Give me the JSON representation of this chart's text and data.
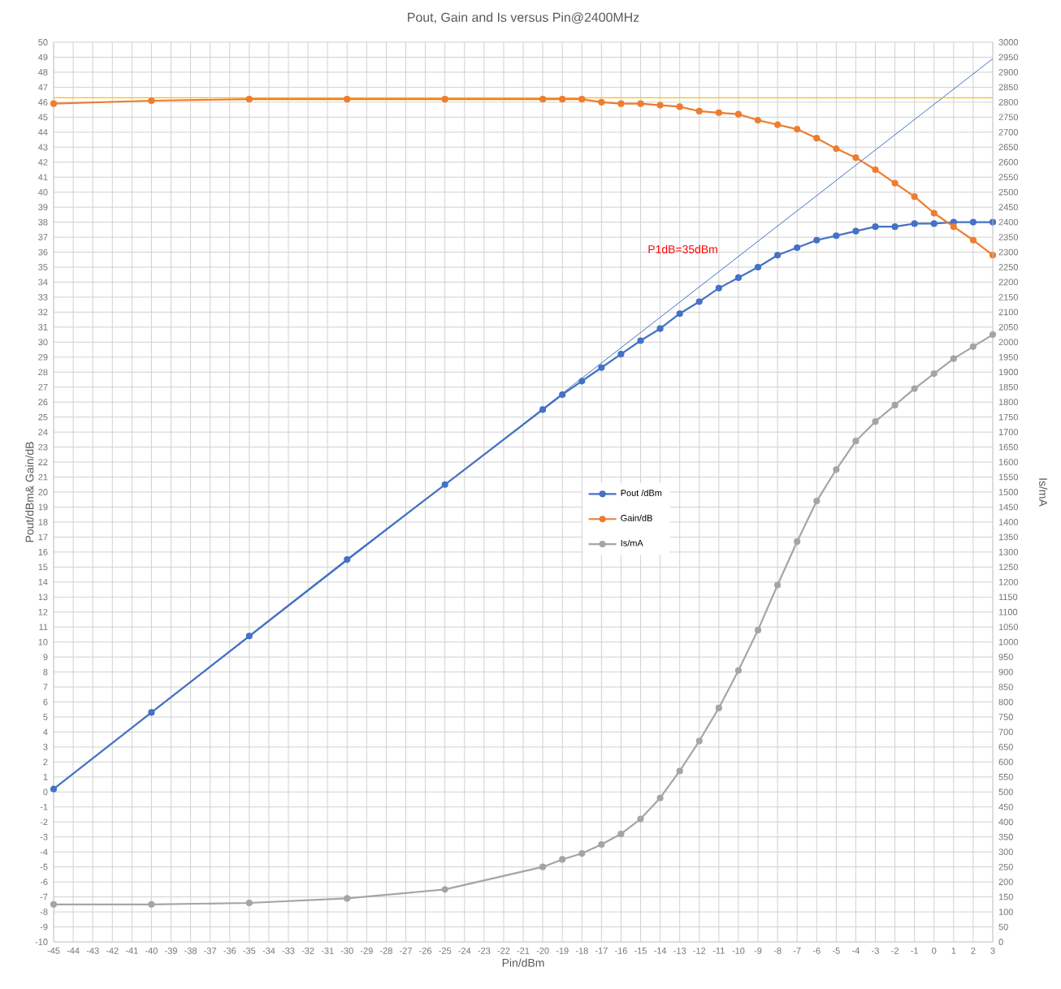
{
  "chart_data": {
    "type": "line",
    "title": "Pout, Gain and Is versus Pin@2400MHz",
    "xlabel": "Pin/dBm",
    "ylabel": "Pout/dBm& Gain/dB",
    "y2label": "Is/mA",
    "x": [
      -45,
      -40,
      -35,
      -30,
      -25,
      -20,
      -19,
      -18,
      -17,
      -16,
      -15,
      -14,
      -13,
      -12,
      -11,
      -10,
      -9,
      -8,
      -7,
      -6,
      -5,
      -4,
      -3,
      -2,
      -1,
      0,
      1,
      2,
      3
    ],
    "series": [
      {
        "name": "Pout /dBm",
        "color": "#4472c4",
        "values": [
          0.2,
          5.3,
          10.4,
          15.5,
          20.5,
          25.5,
          26.5,
          27.4,
          28.3,
          29.2,
          30.1,
          30.9,
          31.9,
          32.7,
          33.6,
          34.3,
          35.0,
          35.8,
          36.3,
          36.8,
          37.1,
          37.4,
          37.7,
          37.7,
          37.9,
          37.9,
          38.0,
          38.0,
          38.0
        ]
      },
      {
        "name": "Gain/dB",
        "color": "#ed7d31",
        "values": [
          45.9,
          46.1,
          46.2,
          46.2,
          46.2,
          46.2,
          46.2,
          46.2,
          46.0,
          45.9,
          45.9,
          45.8,
          45.7,
          45.4,
          45.3,
          45.2,
          44.8,
          44.5,
          44.2,
          43.6,
          42.9,
          42.3,
          41.5,
          40.6,
          39.7,
          38.6,
          37.7,
          36.8,
          35.8
        ]
      },
      {
        "name": "Is/mA",
        "color": "#a5a5a5",
        "axis": "y2",
        "values": [
          125,
          125,
          130,
          145,
          175,
          250,
          275,
          295,
          325,
          360,
          410,
          480,
          570,
          670,
          780,
          905,
          1040,
          1190,
          1335,
          1470,
          1575,
          1670,
          1735,
          1790,
          1845,
          1895,
          1945,
          1985,
          2025
        ]
      },
      {
        "color": "#4472c4",
        "x": [
          -45,
          3
        ],
        "values": [
          0.2,
          48.9
        ],
        "marker": "none"
      }
    ],
    "ref_lines": [
      {
        "axis": "y",
        "value": 46.3,
        "color": "#ffc000"
      }
    ],
    "xlim": [
      -45,
      3
    ],
    "ylim": [
      -10,
      50
    ],
    "y2lim": [
      0,
      3000
    ],
    "xticks": [
      -45,
      -44,
      -43,
      -42,
      -41,
      -40,
      -39,
      -38,
      -37,
      -36,
      -35,
      -34,
      -33,
      -32,
      -31,
      -30,
      -29,
      -28,
      -27,
      -26,
      -25,
      -24,
      -23,
      -22,
      -21,
      -20,
      -19,
      -18,
      -17,
      -16,
      -15,
      -14,
      -13,
      -12,
      -11,
      -10,
      -9,
      -8,
      -7,
      -6,
      -5,
      -4,
      -3,
      -2,
      -1,
      0,
      1,
      2,
      3
    ],
    "yticks": [
      -10,
      -9,
      -8,
      -7,
      -6,
      -5,
      -4,
      -3,
      -2,
      -1,
      0,
      1,
      2,
      3,
      4,
      5,
      6,
      7,
      8,
      9,
      10,
      11,
      12,
      13,
      14,
      15,
      16,
      17,
      18,
      19,
      20,
      21,
      22,
      23,
      24,
      25,
      26,
      27,
      28,
      29,
      30,
      31,
      32,
      33,
      34,
      35,
      36,
      37,
      38,
      39,
      40,
      41,
      42,
      43,
      44,
      45,
      46,
      47,
      48,
      49,
      50
    ],
    "y2ticks": [
      0,
      50,
      100,
      150,
      200,
      250,
      300,
      350,
      400,
      450,
      500,
      550,
      600,
      650,
      700,
      750,
      800,
      850,
      900,
      950,
      1000,
      1050,
      1100,
      1150,
      1200,
      1250,
      1300,
      1350,
      1400,
      1450,
      1500,
      1550,
      1600,
      1650,
      1700,
      1750,
      1800,
      1850,
      1900,
      1950,
      2000,
      2050,
      2100,
      2150,
      2200,
      2250,
      2300,
      2350,
      2400,
      2450,
      2500,
      2550,
      2600,
      2650,
      2700,
      2750,
      2800,
      2850,
      2900,
      2950,
      3000
    ],
    "grid": true,
    "legend": "center",
    "marker": "circle",
    "line_style": "solid",
    "annotations": [
      "P1dB=35dBm"
    ]
  }
}
